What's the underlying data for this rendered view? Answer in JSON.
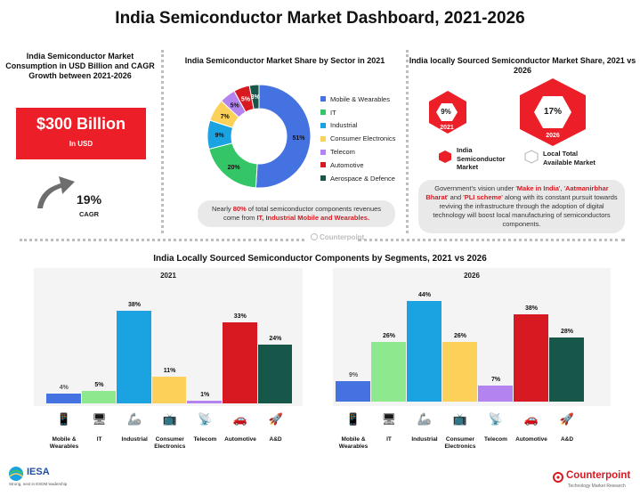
{
  "title": "India Semiconductor Market Dashboard, 2021-2026",
  "consumption": {
    "heading": "India Semiconductor Market Consumption in USD Billion and CAGR Growth between 2021-2026",
    "value": "$300 Billion",
    "unit": "In USD",
    "cagr_value": "19%",
    "cagr_label": "CAGR"
  },
  "watermark": "Counterpoint",
  "local_share": {
    "heading": "India locally Sourced Semiconductor Market Share, 2021 vs 2026",
    "y2021_value": "9%",
    "y2021_label": "2021",
    "y2026_value": "17%",
    "y2026_label": "2026",
    "legend_local": "India Semiconductor Market",
    "legend_total": "Local Total Available Market",
    "note_pre": "Government's vision under '",
    "note_h1": "Make in India",
    "note_mid1": "', '",
    "note_h2": "Aatmanirbhar Bharat",
    "note_mid2": "' and '",
    "note_h3": "PLI scheme",
    "note_post": "' along with its constant pursuit towards reviving the infrastructure through the adoption of digital technology will boost local manufacturing of semiconductors components.",
    "colors": {
      "red": "#ec1f28",
      "outline": "#bfbfbf"
    }
  },
  "bottom_heading": "India Locally Sourced Semiconductor Components by Segments, 2021 vs 2026",
  "pie_note": {
    "pre": "Nearly ",
    "pct": "80%",
    "mid": " of total semiconductor components revenues come from ",
    "highlight": "IT, Industrial Mobile and Wearables."
  },
  "categories": [
    {
      "label_line1": "Mobile &",
      "label_line2": "Wearables",
      "icon": "phone-icon",
      "glyph": "📱"
    },
    {
      "label_line1": "IT",
      "label_line2": "",
      "icon": "monitor-icon",
      "glyph": "🖥"
    },
    {
      "label_line1": "Industrial",
      "label_line2": "",
      "icon": "robot-arm-icon",
      "glyph": "🦾"
    },
    {
      "label_line1": "Consumer",
      "label_line2": "Electronics",
      "icon": "appliance-icon",
      "glyph": "📺"
    },
    {
      "label_line1": "Telecom",
      "label_line2": "",
      "icon": "antenna-icon",
      "glyph": "📡"
    },
    {
      "label_line1": "Automotive",
      "label_line2": "",
      "icon": "car-icon",
      "glyph": "🚗"
    },
    {
      "label_line1": "A&D",
      "label_line2": "",
      "icon": "rocket-icon",
      "glyph": "🚀"
    }
  ],
  "footer": {
    "iesa_name": "IESA",
    "iesa_tagline": "Strong, next in ESDM leadership",
    "counterpoint_name": "Counterpoint",
    "counterpoint_tagline": "Technology Market Research"
  },
  "chart_data": [
    {
      "id": "sector-share-donut",
      "type": "pie",
      "title": "India Semiconductor Market Share by Sector in 2021",
      "categories": [
        "Mobile & Wearables",
        "IT",
        "Industrial",
        "Consumer Electronics",
        "Telecom",
        "Automotive",
        "Aerospace & Defence"
      ],
      "values": [
        51,
        20,
        9,
        7,
        5,
        5,
        3
      ],
      "labels": [
        "51%",
        "20%",
        "9%",
        "7%",
        "5%",
        "5%",
        "3%"
      ],
      "colors": [
        "#4472e0",
        "#34c566",
        "#1aa3e0",
        "#fcd15a",
        "#b384f0",
        "#d71921",
        "#17574a"
      ]
    },
    {
      "id": "segments-2021",
      "type": "bar",
      "title": "2021",
      "categories": [
        "Mobile & Wearables",
        "IT",
        "Industrial",
        "Consumer Electronics",
        "Telecom",
        "Automotive",
        "A&D"
      ],
      "values": [
        4,
        5,
        38,
        11,
        1,
        33,
        24
      ],
      "labels": [
        "4%",
        "5%",
        "38%",
        "11%",
        "1%",
        "33%",
        "24%"
      ],
      "colors": [
        "#4472e0",
        "#8ee88e",
        "#1aa3e0",
        "#fcd15a",
        "#b384f0",
        "#d71921",
        "#17574a"
      ],
      "ylim": [
        0,
        44
      ]
    },
    {
      "id": "segments-2026",
      "type": "bar",
      "title": "2026",
      "categories": [
        "Mobile & Wearables",
        "IT",
        "Industrial",
        "Consumer Electronics",
        "Telecom",
        "Automotive",
        "A&D"
      ],
      "values": [
        9,
        26,
        44,
        26,
        7,
        38,
        28
      ],
      "labels": [
        "9%",
        "26%",
        "44%",
        "26%",
        "7%",
        "38%",
        "28%"
      ],
      "colors": [
        "#4472e0",
        "#8ee88e",
        "#1aa3e0",
        "#fcd15a",
        "#b384f0",
        "#d71921",
        "#17574a"
      ],
      "ylim": [
        0,
        44
      ]
    }
  ]
}
